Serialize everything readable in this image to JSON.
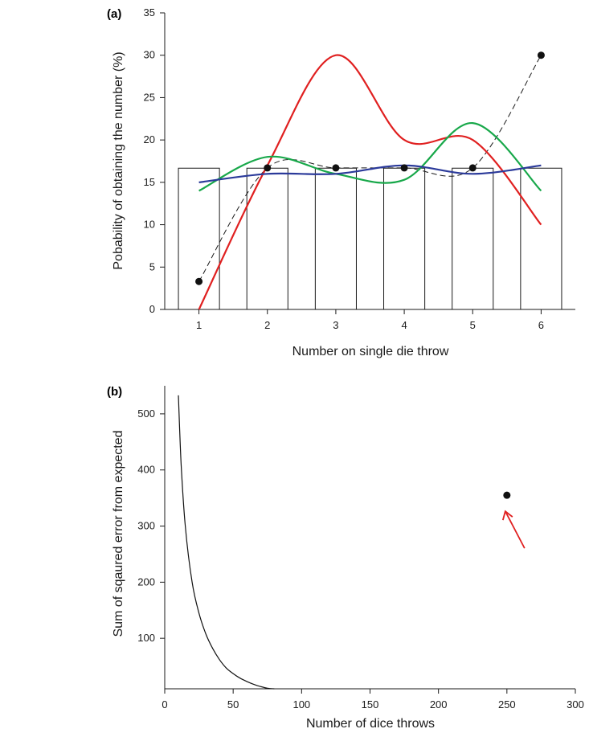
{
  "chart_data": [
    {
      "panel_label": "(a)",
      "type": "bar",
      "xlabel": "Number on single die throw",
      "ylabel": "Pobability of obtaining the number (%)",
      "xlim": [
        0.5,
        6.5
      ],
      "ylim": [
        0,
        35
      ],
      "xticks": [
        1,
        2,
        3,
        4,
        5,
        6
      ],
      "yticks": [
        0,
        5,
        10,
        15,
        20,
        25,
        30,
        35
      ],
      "grid": false,
      "bars": {
        "categories": [
          1,
          2,
          3,
          4,
          5,
          6
        ],
        "values": [
          16.67,
          16.67,
          16.67,
          16.67,
          16.67,
          16.67
        ],
        "half_width": 0.3
      },
      "points": {
        "x": [
          1,
          2,
          3,
          4,
          5,
          6
        ],
        "y": [
          3.3,
          16.7,
          16.7,
          16.7,
          16.7,
          30
        ],
        "color": "#111111",
        "dashed_line": true
      },
      "series": [
        {
          "color": "#e02020",
          "x": [
            1,
            2,
            3,
            4,
            5,
            6
          ],
          "y": [
            0,
            17,
            30,
            20,
            20,
            10
          ]
        },
        {
          "color": "#18a84a",
          "x": [
            1,
            2,
            3,
            4,
            5,
            6
          ],
          "y": [
            14,
            18,
            16,
            15.3,
            22,
            14
          ]
        },
        {
          "color": "#2b3a9a",
          "x": [
            1,
            2,
            3,
            4,
            5,
            6
          ],
          "y": [
            15,
            16,
            16,
            17,
            16,
            17
          ]
        }
      ]
    },
    {
      "panel_label": "(b)",
      "type": "line",
      "xlabel": "Number of dice throws",
      "ylabel": "Sum of sqaured error from expected",
      "xlim": [
        0,
        300
      ],
      "ylim": [
        10,
        550
      ],
      "xticks": [
        0,
        50,
        100,
        150,
        200,
        250,
        300
      ],
      "yticks": [
        100,
        200,
        300,
        400,
        500
      ],
      "grid": false,
      "curve": {
        "x": [
          10,
          12,
          15,
          20,
          25,
          30,
          35,
          40,
          45,
          50,
          55,
          60,
          65,
          70,
          75,
          80
        ],
        "y": [
          533,
          410,
          300,
          200,
          145,
          108,
          82,
          62,
          47,
          37,
          29,
          23,
          18,
          14,
          11,
          10
        ],
        "color": "#111111"
      },
      "points": {
        "x": [
          250
        ],
        "y": [
          355
        ],
        "color": "#111111"
      },
      "arrow": {
        "color": "#e02020"
      }
    }
  ]
}
